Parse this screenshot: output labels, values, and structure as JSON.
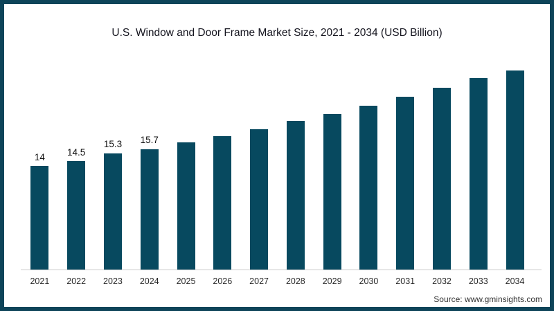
{
  "title": "U.S. Window and Door Frame Market Size, 2021 - 2034 (USD Billion)",
  "source": "Source: www.gminsights.com",
  "colors": {
    "bar": "#07495F",
    "frame_border": "#0E4459",
    "axis_line": "#C9C9C9",
    "title_text": "#14141E",
    "data_label_text": "#111111",
    "tick_text": "#2A2A2A",
    "source_text": "#333333",
    "background": "#FFFFFF"
  },
  "chart_data": {
    "type": "bar",
    "title": "U.S. Window and Door Frame Market Size, 2021 - 2034 (USD Billion)",
    "categories": [
      "2021",
      "2022",
      "2023",
      "2024",
      "2025",
      "2026",
      "2027",
      "2028",
      "2029",
      "2030",
      "2031",
      "2032",
      "2033",
      "2034"
    ],
    "values": [
      14,
      14.5,
      15.3,
      15.7,
      16.4,
      17.0,
      17.7,
      18.6,
      19.3,
      20.1,
      21.0,
      21.9,
      22.9,
      24.0
    ],
    "data_labels": [
      "14",
      "14.5",
      "15.3",
      "15.7",
      "",
      "",
      "",
      "",
      "",
      "",
      "",
      "",
      "",
      ""
    ],
    "xlabel": "",
    "ylabel": "",
    "ylim": [
      3.5,
      24.1
    ],
    "grid": false,
    "legend": "none",
    "bar_color": "#07495F"
  }
}
